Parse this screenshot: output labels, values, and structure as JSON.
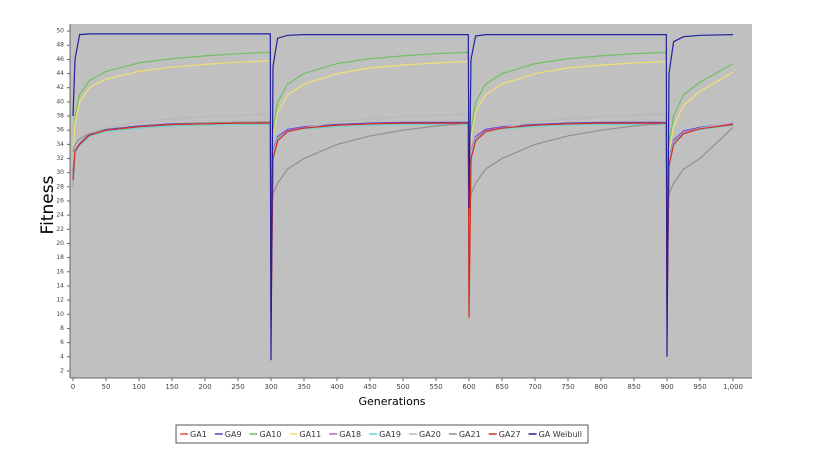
{
  "chart_data": {
    "type": "line",
    "x_label": "Generations",
    "y_label": "Fitness",
    "x": [
      0,
      3,
      10,
      25,
      50,
      100,
      150,
      200,
      250,
      299,
      300,
      303,
      310,
      325,
      350,
      400,
      450,
      500,
      550,
      599,
      600,
      603,
      610,
      625,
      650,
      700,
      750,
      800,
      850,
      899,
      900,
      903,
      910,
      925,
      950,
      1000
    ],
    "series": [
      {
        "name": "GA1",
        "color": "#e05050",
        "values": [
          30,
          33,
          34,
          35.3,
          36,
          36.5,
          36.8,
          36.9,
          37,
          37,
          8,
          32,
          34.5,
          35.8,
          36.3,
          36.7,
          36.9,
          37,
          37,
          37,
          12,
          32,
          34.5,
          35.8,
          36.3,
          36.7,
          36.9,
          37,
          37,
          37,
          9,
          31,
          34,
          35.5,
          36.2,
          36.8
        ]
      },
      {
        "name": "GA9",
        "color": "#4a4ad0",
        "values": [
          28,
          33.1,
          34.1,
          35.4,
          36.1,
          36.6,
          36.9,
          37,
          37.1,
          37.1,
          20,
          33.1,
          35.1,
          36.1,
          36.5,
          36.8,
          37,
          37.1,
          37.1,
          37.1,
          20,
          33.1,
          35.1,
          36.1,
          36.5,
          36.8,
          37,
          37.1,
          37.1,
          37.1,
          20,
          32.1,
          34.6,
          35.9,
          36.4,
          37
        ]
      },
      {
        "name": "GA10",
        "color": "#70c060",
        "values": [
          33,
          38,
          41,
          43,
          44.3,
          45.5,
          46.1,
          46.5,
          46.8,
          47,
          27,
          36,
          40,
          42.5,
          44,
          45.4,
          46.1,
          46.5,
          46.8,
          47,
          27,
          36,
          40,
          42.5,
          44,
          45.4,
          46.1,
          46.5,
          46.8,
          47,
          27,
          34,
          38,
          41,
          42.8,
          45.4
        ]
      },
      {
        "name": "GA11",
        "color": "#f0e070",
        "values": [
          33,
          37,
          40,
          42,
          43.2,
          44.3,
          44.9,
          45.3,
          45.6,
          45.8,
          27,
          35,
          38.5,
          41,
          42.5,
          44,
          44.8,
          45.2,
          45.5,
          45.7,
          27,
          35,
          38.5,
          41,
          42.5,
          44,
          44.8,
          45.2,
          45.5,
          45.7,
          27,
          33,
          36.5,
          39.5,
          41.5,
          44.2
        ]
      },
      {
        "name": "GA18",
        "color": "#c060d0",
        "values": [
          28,
          33,
          34,
          35.3,
          36,
          36.5,
          36.8,
          36.9,
          37,
          37,
          20,
          33,
          35,
          36,
          36.4,
          36.7,
          36.9,
          37,
          37,
          37,
          20,
          33,
          35,
          36,
          36.4,
          36.7,
          36.9,
          37,
          37,
          37,
          20,
          32,
          34.5,
          35.8,
          36.3,
          36.9
        ]
      },
      {
        "name": "GA19",
        "color": "#70d0d0",
        "values": [
          28,
          32.8,
          33.8,
          35.1,
          35.8,
          36.3,
          36.6,
          36.7,
          36.8,
          36.8,
          20,
          32.8,
          34.8,
          35.8,
          36.2,
          36.5,
          36.7,
          36.8,
          36.8,
          36.8,
          20,
          32.8,
          34.8,
          35.8,
          36.2,
          36.5,
          36.7,
          36.8,
          36.8,
          36.8,
          20,
          31.8,
          34.3,
          35.6,
          36.1,
          36.7
        ]
      },
      {
        "name": "GA20",
        "color": "#b8b8b8",
        "values": [
          33,
          34,
          34.8,
          35.6,
          36.3,
          37.2,
          37.6,
          37.9,
          38.1,
          38.3,
          28,
          33,
          34.5,
          35.5,
          36.3,
          37.2,
          37.6,
          37.9,
          38.1,
          38.3,
          28,
          33,
          34.5,
          35.5,
          36.3,
          37.2,
          37.6,
          37.9,
          38.1,
          38.3,
          28,
          32,
          34,
          35.5,
          36.3,
          37.1
        ]
      },
      {
        "name": "GA21",
        "color": "#909090",
        "values": [
          33,
          34,
          34.8,
          35.5,
          36,
          36.5,
          36.8,
          37,
          37.1,
          37.2,
          24,
          27,
          28.5,
          30.5,
          32,
          34,
          35.2,
          36,
          36.6,
          37,
          24,
          27,
          28.5,
          30.5,
          32,
          34,
          35.2,
          36,
          36.6,
          37,
          24,
          27,
          28.5,
          30.5,
          32,
          36.4
        ]
      },
      {
        "name": "GA27",
        "color": "#d03020",
        "values": [
          29,
          33,
          34,
          35.3,
          36,
          36.5,
          36.8,
          36.9,
          37,
          37,
          10,
          32,
          34.5,
          35.8,
          36.3,
          36.7,
          36.9,
          37,
          37,
          37,
          9.5,
          32,
          34.5,
          35.8,
          36.3,
          36.7,
          36.9,
          37,
          37,
          37,
          10,
          31,
          34,
          35.5,
          36.2,
          36.8
        ]
      },
      {
        "name": "GA Weibull",
        "color": "#2020a0",
        "values": [
          38,
          46,
          49.5,
          49.6,
          49.6,
          49.6,
          49.6,
          49.6,
          49.6,
          49.6,
          3.5,
          45,
          49,
          49.4,
          49.5,
          49.5,
          49.5,
          49.5,
          49.5,
          49.5,
          25,
          46,
          49.3,
          49.5,
          49.5,
          49.5,
          49.5,
          49.5,
          49.5,
          49.5,
          4,
          44,
          48.5,
          49.2,
          49.4,
          49.5
        ]
      }
    ],
    "xlim": [
      0,
      1000
    ],
    "xticks": [
      0,
      50,
      100,
      150,
      200,
      250,
      300,
      350,
      400,
      450,
      500,
      550,
      600,
      650,
      700,
      750,
      800,
      850,
      900,
      950,
      {
        "value": 1000,
        "label": "1,000"
      }
    ],
    "ylim": [
      1,
      51
    ],
    "yticks": [
      2,
      4,
      6,
      8,
      10,
      12,
      14,
      16,
      18,
      20,
      22,
      24,
      26,
      28,
      30,
      32,
      34,
      36,
      38,
      40,
      42,
      44,
      46,
      48,
      50
    ],
    "legend": "bottom"
  }
}
